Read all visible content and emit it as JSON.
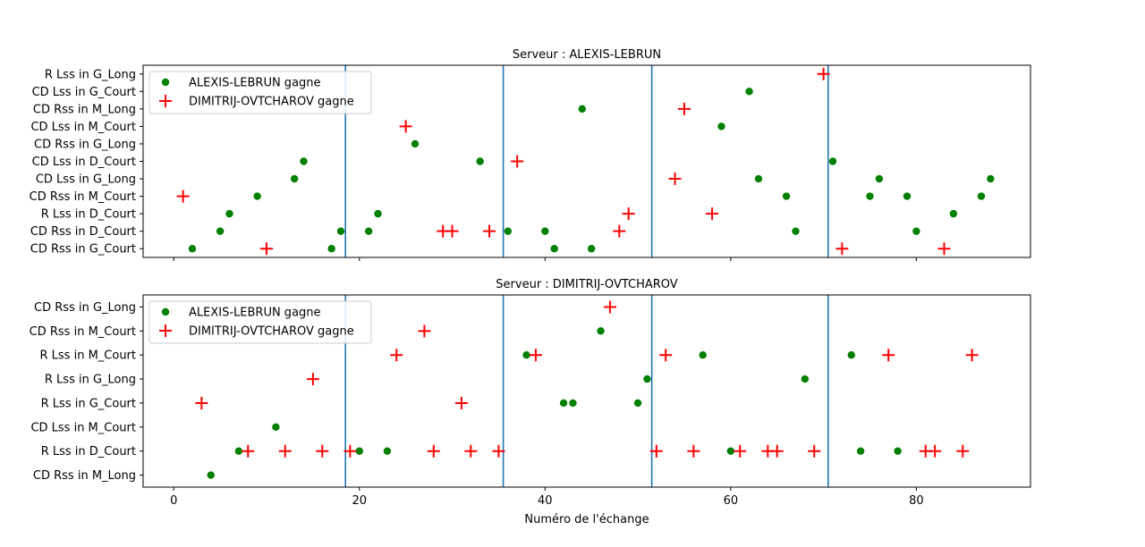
{
  "chart_data": [
    {
      "type": "scatter",
      "title": "Serveur : ALEXIS-LEBRUN",
      "xlabel": "",
      "ylabel": "",
      "xlim": [
        -3.3,
        92.3
      ],
      "xticks": [
        0,
        20,
        40,
        60,
        80
      ],
      "xticklabels_visible": false,
      "categories": [
        "CD Rss in G_Court",
        "CD Rss in D_Court",
        "R Lss in D_Court",
        "CD Rss in M_Court",
        "CD Lss in G_Long",
        "CD Lss in D_Court",
        "CD Rss in G_Long",
        "CD Lss in M_Court",
        "CD Rss in M_Long",
        "CD Lss in G_Court",
        "R Lss in G_Long"
      ],
      "vlines": [
        18.5,
        35.5,
        51.5,
        70.5
      ],
      "legend": "top-left",
      "series": [
        {
          "name": "ALEXIS-LEBRUN gagne",
          "marker": "circle",
          "color": "#008000",
          "points": [
            [
              2,
              0
            ],
            [
              5,
              1
            ],
            [
              6,
              2
            ],
            [
              9,
              3
            ],
            [
              13,
              4
            ],
            [
              14,
              5
            ],
            [
              17,
              0
            ],
            [
              18,
              1
            ],
            [
              21,
              1
            ],
            [
              22,
              2
            ],
            [
              26,
              6
            ],
            [
              33,
              5
            ],
            [
              36,
              1
            ],
            [
              40,
              1
            ],
            [
              41,
              0
            ],
            [
              44,
              8
            ],
            [
              45,
              0
            ],
            [
              59,
              7
            ],
            [
              62,
              9
            ],
            [
              63,
              4
            ],
            [
              66,
              3
            ],
            [
              67,
              1
            ],
            [
              71,
              5
            ],
            [
              75,
              3
            ],
            [
              76,
              4
            ],
            [
              79,
              3
            ],
            [
              80,
              1
            ],
            [
              84,
              2
            ],
            [
              87,
              3
            ],
            [
              88,
              4
            ]
          ]
        },
        {
          "name": "DIMITRIJ-OVTCHAROV gagne",
          "marker": "plus",
          "color": "#ff0000",
          "points": [
            [
              1,
              3
            ],
            [
              10,
              0
            ],
            [
              25,
              7
            ],
            [
              29,
              1
            ],
            [
              30,
              1
            ],
            [
              34,
              1
            ],
            [
              37,
              5
            ],
            [
              48,
              1
            ],
            [
              49,
              2
            ],
            [
              54,
              4
            ],
            [
              55,
              8
            ],
            [
              58,
              2
            ],
            [
              70,
              10
            ],
            [
              72,
              0
            ],
            [
              83,
              0
            ]
          ]
        }
      ]
    },
    {
      "type": "scatter",
      "title": "Serveur : DIMITRIJ-OVTCHAROV",
      "xlabel": "Numéro de l'échange",
      "ylabel": "",
      "xlim": [
        -3.3,
        92.3
      ],
      "xticks": [
        0,
        20,
        40,
        60,
        80
      ],
      "xticklabels_visible": true,
      "categories": [
        "CD Rss in M_Long",
        "R Lss in D_Court",
        "CD Lss in M_Court",
        "R Lss in G_Court",
        "R Lss in G_Long",
        "R Lss in M_Court",
        "CD Rss in M_Court",
        "CD Rss in G_Long"
      ],
      "vlines": [
        18.5,
        35.5,
        51.5,
        70.5
      ],
      "legend": "top-left",
      "series": [
        {
          "name": "ALEXIS-LEBRUN gagne",
          "marker": "circle",
          "color": "#008000",
          "points": [
            [
              4,
              0
            ],
            [
              7,
              1
            ],
            [
              11,
              2
            ],
            [
              20,
              1
            ],
            [
              23,
              1
            ],
            [
              38,
              5
            ],
            [
              42,
              3
            ],
            [
              43,
              3
            ],
            [
              46,
              6
            ],
            [
              50,
              3
            ],
            [
              51,
              4
            ],
            [
              57,
              5
            ],
            [
              60,
              1
            ],
            [
              68,
              4
            ],
            [
              73,
              5
            ],
            [
              74,
              1
            ],
            [
              78,
              1
            ]
          ]
        },
        {
          "name": "DIMITRIJ-OVTCHAROV gagne",
          "marker": "plus",
          "color": "#ff0000",
          "points": [
            [
              3,
              3
            ],
            [
              8,
              1
            ],
            [
              12,
              1
            ],
            [
              15,
              4
            ],
            [
              16,
              1
            ],
            [
              19,
              1
            ],
            [
              24,
              5
            ],
            [
              27,
              6
            ],
            [
              28,
              1
            ],
            [
              31,
              3
            ],
            [
              32,
              1
            ],
            [
              35,
              1
            ],
            [
              39,
              5
            ],
            [
              47,
              7
            ],
            [
              52,
              1
            ],
            [
              53,
              5
            ],
            [
              56,
              1
            ],
            [
              61,
              1
            ],
            [
              64,
              1
            ],
            [
              65,
              1
            ],
            [
              69,
              1
            ],
            [
              77,
              5
            ],
            [
              81,
              1
            ],
            [
              82,
              1
            ],
            [
              85,
              1
            ],
            [
              86,
              5
            ]
          ]
        }
      ]
    }
  ],
  "colors": {
    "vline": "#1f77b4",
    "win_a": "#008000",
    "win_b": "#ff0000"
  }
}
